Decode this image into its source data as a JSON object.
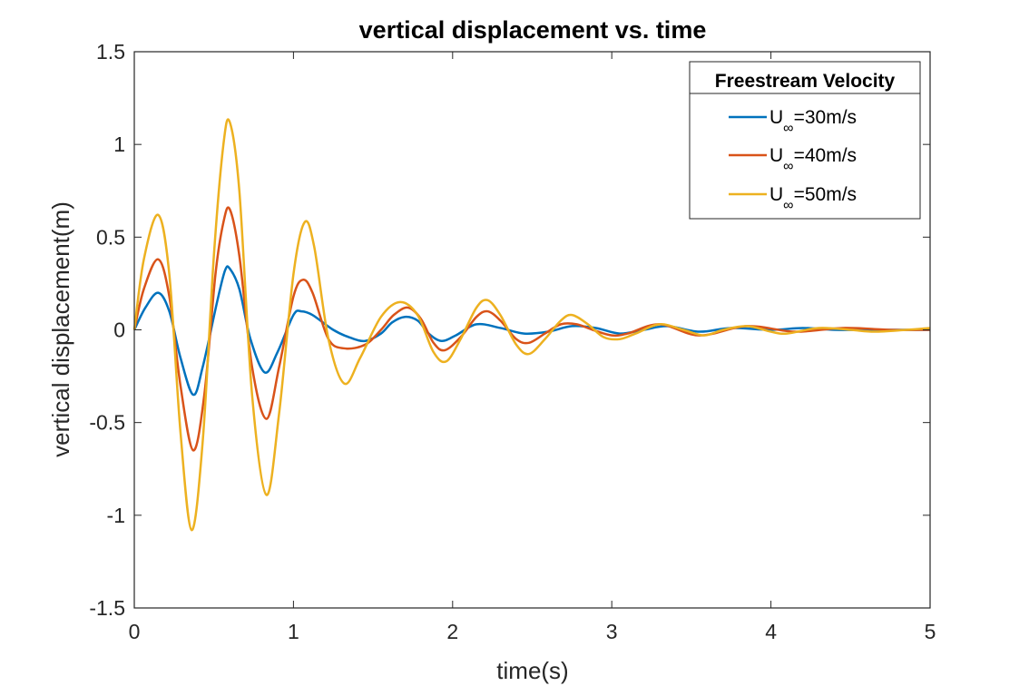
{
  "chart_data": {
    "type": "line",
    "title": "vertical displacement vs. time",
    "xlabel": "time(s)",
    "ylabel": "vertical displacement(m)",
    "xlim": [
      0,
      5
    ],
    "ylim": [
      -1.5,
      1.5
    ],
    "xticks": [
      0,
      1,
      2,
      3,
      4,
      5
    ],
    "xtick_labels": [
      "0",
      "1",
      "2",
      "3",
      "4",
      "5"
    ],
    "yticks": [
      -1.5,
      -1,
      -0.5,
      0,
      0.5,
      1,
      1.5
    ],
    "ytick_labels": [
      "-1.5",
      "-1",
      "-0.5",
      "0",
      "0.5",
      "1",
      "1.5"
    ],
    "grid": false,
    "legend": {
      "title": "Freestream Velocity",
      "placement": "top-right",
      "entries": [
        {
          "prefix": "U",
          "subscript": "∞",
          "suffix": "=30m/s"
        },
        {
          "prefix": "U",
          "subscript": "∞",
          "suffix": "=40m/s"
        },
        {
          "prefix": "U",
          "subscript": "∞",
          "suffix": "=50m/s"
        }
      ]
    },
    "series": [
      {
        "name": "U∞=30m/s",
        "color": "#0072BD",
        "points": [
          [
            0.0,
            0.0
          ],
          [
            0.07,
            0.12
          ],
          [
            0.15,
            0.2
          ],
          [
            0.22,
            0.1
          ],
          [
            0.29,
            -0.15
          ],
          [
            0.37,
            -0.35
          ],
          [
            0.43,
            -0.2
          ],
          [
            0.52,
            0.15
          ],
          [
            0.57,
            0.32
          ],
          [
            0.6,
            0.33
          ],
          [
            0.66,
            0.22
          ],
          [
            0.73,
            -0.05
          ],
          [
            0.82,
            -0.23
          ],
          [
            0.9,
            -0.12
          ],
          [
            1.0,
            0.08
          ],
          [
            1.05,
            0.1
          ],
          [
            1.12,
            0.08
          ],
          [
            1.25,
            0.0
          ],
          [
            1.35,
            -0.04
          ],
          [
            1.45,
            -0.06
          ],
          [
            1.55,
            -0.02
          ],
          [
            1.62,
            0.04
          ],
          [
            1.7,
            0.07
          ],
          [
            1.78,
            0.05
          ],
          [
            1.85,
            -0.02
          ],
          [
            1.93,
            -0.06
          ],
          [
            2.02,
            -0.03
          ],
          [
            2.15,
            0.03
          ],
          [
            2.3,
            0.01
          ],
          [
            2.45,
            -0.02
          ],
          [
            2.6,
            -0.01
          ],
          [
            2.75,
            0.02
          ],
          [
            2.9,
            0.01
          ],
          [
            3.05,
            -0.02
          ],
          [
            3.2,
            0.0
          ],
          [
            3.35,
            0.02
          ],
          [
            3.55,
            -0.01
          ],
          [
            3.75,
            0.01
          ],
          [
            4.0,
            0.0
          ],
          [
            4.2,
            0.01
          ],
          [
            4.4,
            0.0
          ],
          [
            4.6,
            0.0
          ],
          [
            4.8,
            0.0
          ],
          [
            5.0,
            0.0
          ]
        ]
      },
      {
        "name": "U∞=40m/s",
        "color": "#D95319",
        "points": [
          [
            0.0,
            0.0
          ],
          [
            0.06,
            0.22
          ],
          [
            0.15,
            0.38
          ],
          [
            0.22,
            0.18
          ],
          [
            0.29,
            -0.3
          ],
          [
            0.37,
            -0.65
          ],
          [
            0.44,
            -0.35
          ],
          [
            0.51,
            0.3
          ],
          [
            0.56,
            0.58
          ],
          [
            0.6,
            0.65
          ],
          [
            0.66,
            0.4
          ],
          [
            0.74,
            -0.2
          ],
          [
            0.83,
            -0.48
          ],
          [
            0.91,
            -0.2
          ],
          [
            1.0,
            0.18
          ],
          [
            1.06,
            0.27
          ],
          [
            1.12,
            0.2
          ],
          [
            1.22,
            -0.05
          ],
          [
            1.32,
            -0.1
          ],
          [
            1.45,
            -0.08
          ],
          [
            1.55,
            0.0
          ],
          [
            1.63,
            0.08
          ],
          [
            1.72,
            0.12
          ],
          [
            1.8,
            0.06
          ],
          [
            1.88,
            -0.07
          ],
          [
            1.95,
            -0.11
          ],
          [
            2.05,
            -0.04
          ],
          [
            2.15,
            0.07
          ],
          [
            2.22,
            0.1
          ],
          [
            2.3,
            0.05
          ],
          [
            2.4,
            -0.05
          ],
          [
            2.48,
            -0.07
          ],
          [
            2.58,
            -0.02
          ],
          [
            2.68,
            0.03
          ],
          [
            2.78,
            0.03
          ],
          [
            2.88,
            0.0
          ],
          [
            3.0,
            -0.03
          ],
          [
            3.1,
            -0.02
          ],
          [
            3.3,
            0.03
          ],
          [
            3.55,
            -0.03
          ],
          [
            3.85,
            0.02
          ],
          [
            4.15,
            -0.01
          ],
          [
            4.45,
            0.01
          ],
          [
            4.75,
            0.0
          ],
          [
            5.0,
            0.0
          ]
        ]
      },
      {
        "name": "U∞=50m/s",
        "color": "#EDB120",
        "points": [
          [
            0.0,
            0.0
          ],
          [
            0.06,
            0.38
          ],
          [
            0.15,
            0.62
          ],
          [
            0.22,
            0.3
          ],
          [
            0.29,
            -0.55
          ],
          [
            0.36,
            -1.08
          ],
          [
            0.43,
            -0.6
          ],
          [
            0.5,
            0.4
          ],
          [
            0.56,
            1.0
          ],
          [
            0.6,
            1.12
          ],
          [
            0.66,
            0.75
          ],
          [
            0.74,
            -0.35
          ],
          [
            0.83,
            -0.89
          ],
          [
            0.91,
            -0.45
          ],
          [
            1.0,
            0.3
          ],
          [
            1.07,
            0.58
          ],
          [
            1.13,
            0.45
          ],
          [
            1.22,
            -0.05
          ],
          [
            1.32,
            -0.29
          ],
          [
            1.42,
            -0.15
          ],
          [
            1.55,
            0.07
          ],
          [
            1.67,
            0.15
          ],
          [
            1.78,
            0.08
          ],
          [
            1.88,
            -0.12
          ],
          [
            1.96,
            -0.17
          ],
          [
            2.05,
            -0.05
          ],
          [
            2.15,
            0.12
          ],
          [
            2.22,
            0.16
          ],
          [
            2.3,
            0.08
          ],
          [
            2.4,
            -0.08
          ],
          [
            2.48,
            -0.13
          ],
          [
            2.58,
            -0.05
          ],
          [
            2.68,
            0.05
          ],
          [
            2.75,
            0.08
          ],
          [
            2.85,
            0.03
          ],
          [
            2.95,
            -0.04
          ],
          [
            3.05,
            -0.05
          ],
          [
            3.15,
            -0.02
          ],
          [
            3.3,
            0.03
          ],
          [
            3.45,
            0.0
          ],
          [
            3.58,
            -0.03
          ],
          [
            3.7,
            0.0
          ],
          [
            3.85,
            0.02
          ],
          [
            4.0,
            -0.01
          ],
          [
            4.1,
            -0.02
          ],
          [
            4.3,
            0.01
          ],
          [
            4.5,
            0.0
          ],
          [
            4.65,
            -0.01
          ],
          [
            4.85,
            0.0
          ],
          [
            5.0,
            0.01
          ]
        ]
      }
    ]
  }
}
